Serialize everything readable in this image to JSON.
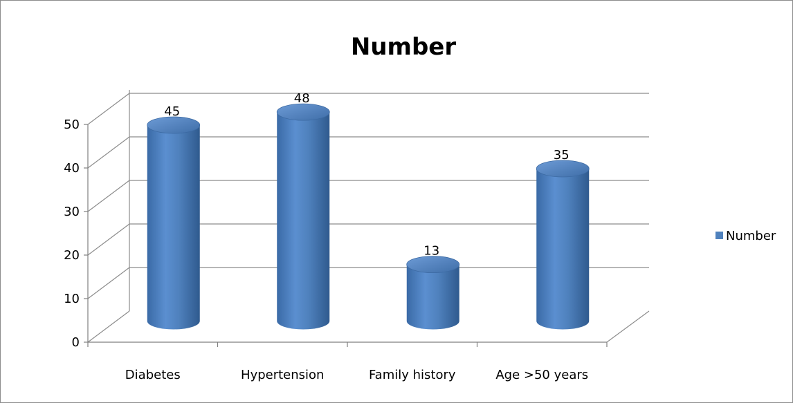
{
  "chart_data": {
    "type": "bar",
    "title": "Number",
    "categories": [
      "Diabetes",
      "Hypertension",
      "Family history",
      "Age >50 years"
    ],
    "series": [
      {
        "name": "Number",
        "values": [
          45,
          48,
          13,
          35
        ],
        "color": "#4f81bd"
      }
    ],
    "data_labels": [
      "45",
      "48",
      "13",
      "35"
    ],
    "ylim": [
      0,
      50
    ],
    "yticks": [
      0,
      10,
      20,
      30,
      40,
      50
    ],
    "ytick_labels": [
      "0",
      "10",
      "20",
      "30",
      "40",
      "50"
    ],
    "grid": true,
    "style": "3d-cylinder",
    "legend": {
      "position": "right",
      "entries": [
        "Number"
      ]
    }
  }
}
